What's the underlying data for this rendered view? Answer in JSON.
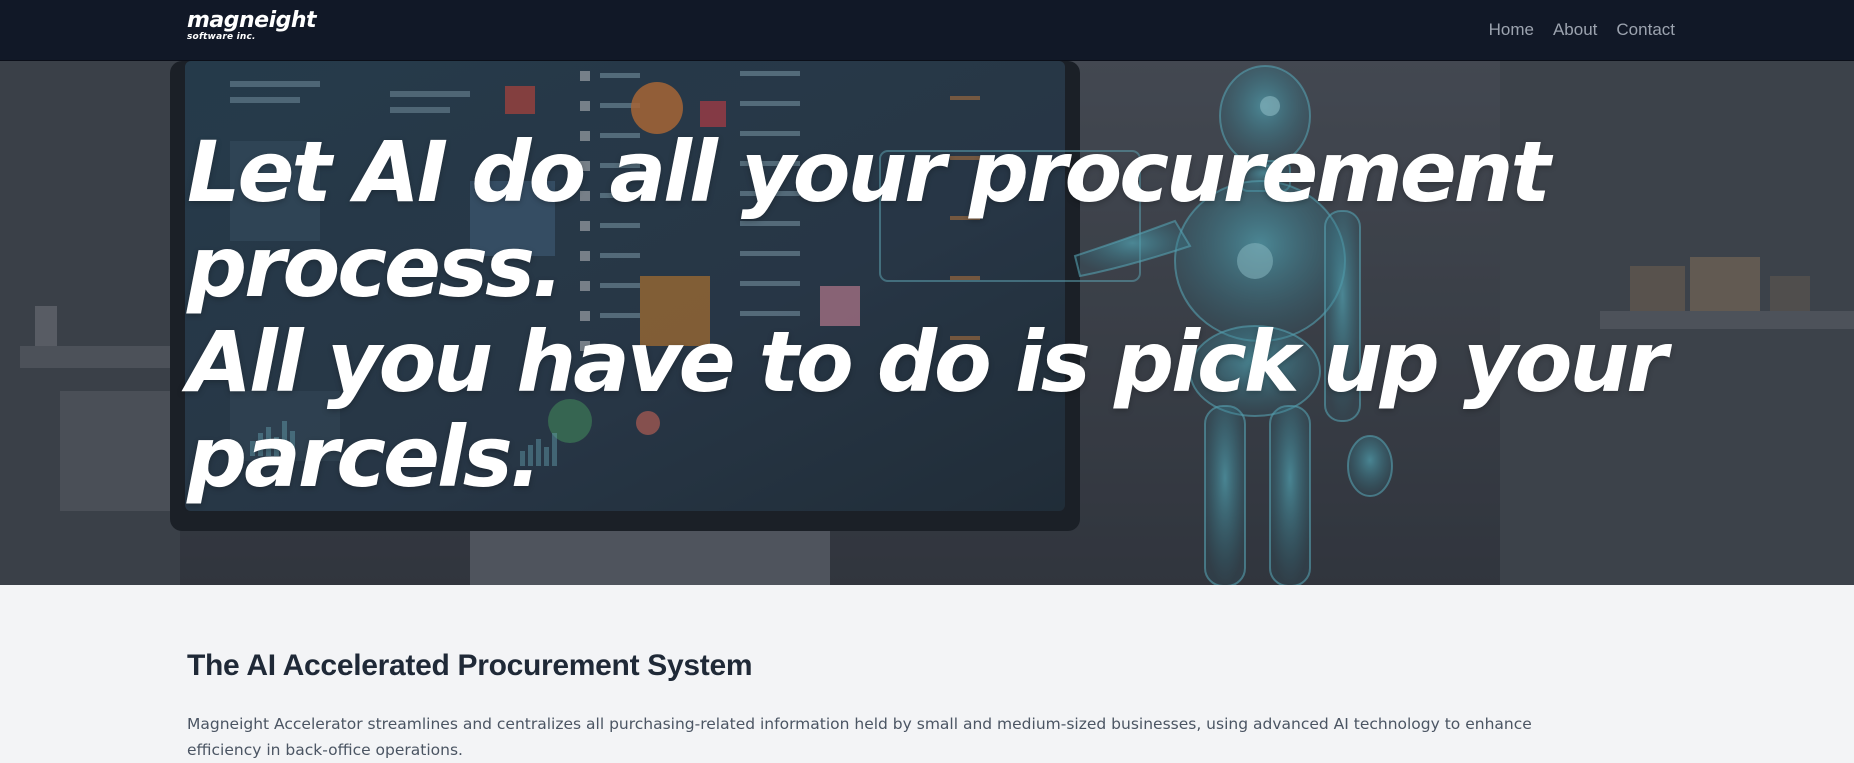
{
  "nav": {
    "logo_main": "magneight",
    "logo_sub": "software inc.",
    "links": [
      "Home",
      "About",
      "Contact"
    ]
  },
  "hero": {
    "lines": [
      "Let AI do all your procurement",
      "process.",
      "All you have to do is pick up your",
      "parcels."
    ]
  },
  "section": {
    "title": "The AI Accelerated Procurement System",
    "body": "Magneight Accelerator streamlines and centralizes all purchasing-related information held by small and medium-sized businesses, using advanced AI technology to enhance efficiency in back-office operations."
  },
  "colors": {
    "nav_bg": "#111827",
    "nav_link": "#9ca3af",
    "hero_text": "#ffffff",
    "page_bg": "#f3f4f6",
    "title": "#1f2937",
    "body": "#4b5563"
  }
}
